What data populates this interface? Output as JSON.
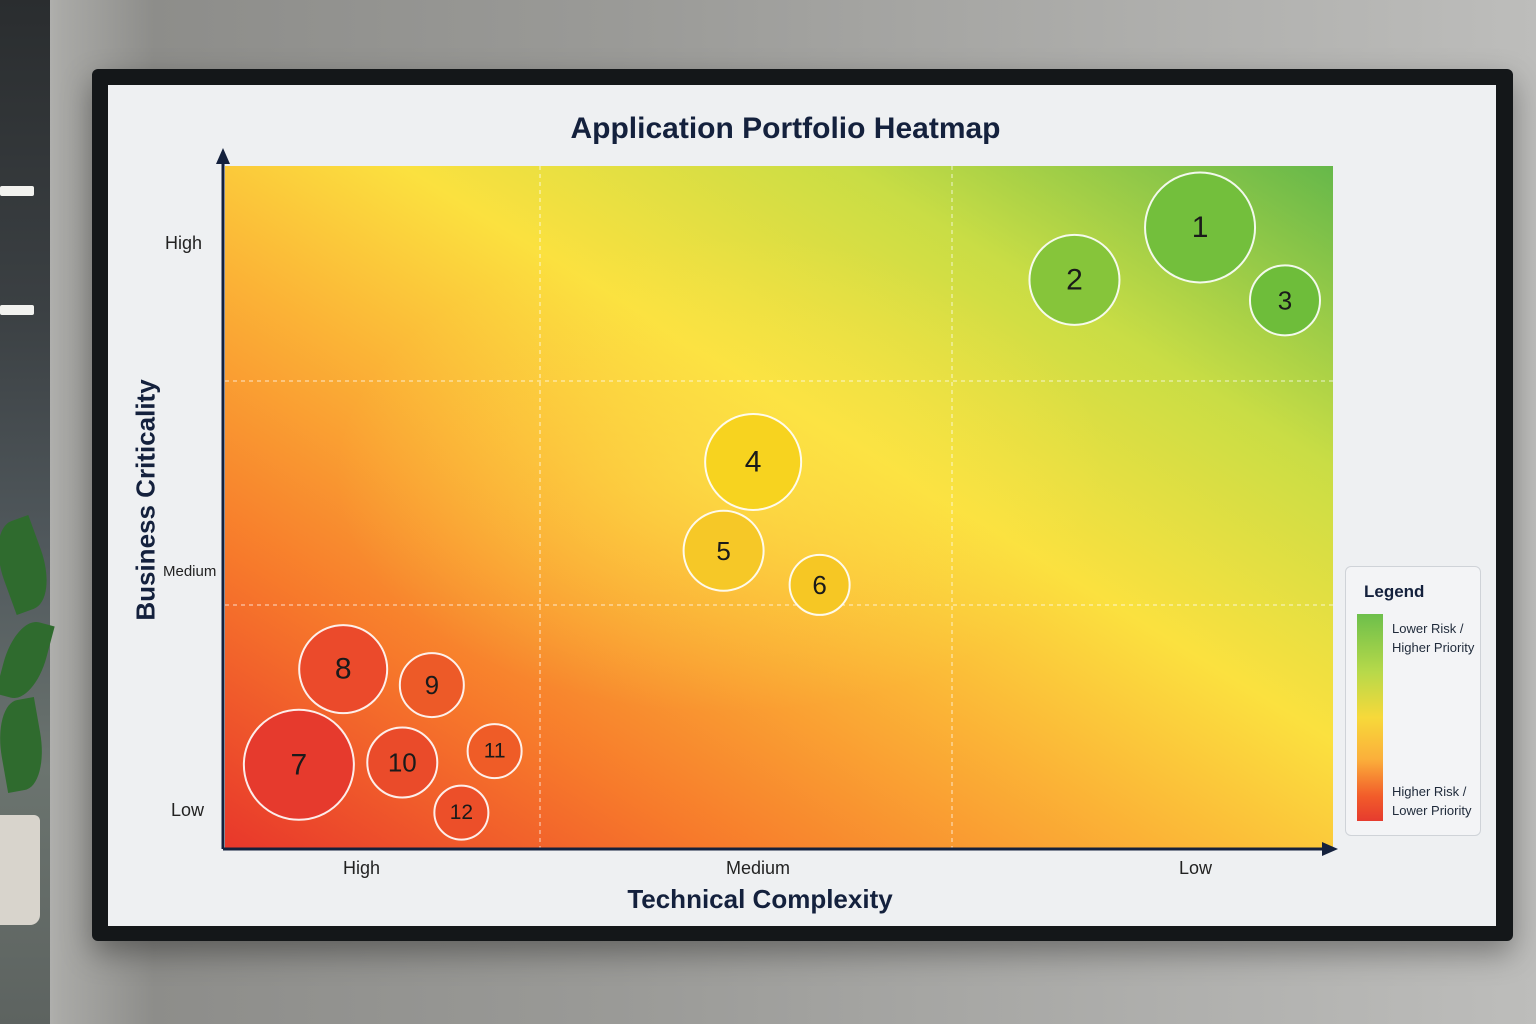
{
  "chart_data": {
    "type": "scatter",
    "title": "Application Portfolio Heatmap",
    "xlabel": "Technical Complexity",
    "ylabel": "Business Criticality",
    "x_ticks": [
      "High",
      "Medium",
      "Low"
    ],
    "y_ticks": [
      "High",
      "Medium",
      "Low"
    ],
    "xlim": [
      0,
      3
    ],
    "ylim": [
      0,
      3
    ],
    "grid": true,
    "legend": {
      "title": "Legend",
      "position": "right",
      "top_label": "Lower Risk / Higher Priority",
      "bottom_label": "Higher Risk / Lower Priority"
    },
    "points": [
      {
        "label": "1",
        "x": 2.64,
        "y": 2.73,
        "size": 55,
        "color": "#73bf3c"
      },
      {
        "label": "2",
        "x": 2.3,
        "y": 2.5,
        "size": 45,
        "color": "#86c53a"
      },
      {
        "label": "3",
        "x": 2.87,
        "y": 2.41,
        "size": 35,
        "color": "#6ebd3a"
      },
      {
        "label": "4",
        "x": 1.43,
        "y": 1.7,
        "size": 48,
        "color": "#f7d31f"
      },
      {
        "label": "5",
        "x": 1.35,
        "y": 1.31,
        "size": 40,
        "color": "#f6c827"
      },
      {
        "label": "6",
        "x": 1.61,
        "y": 1.16,
        "size": 30,
        "color": "#f6c724"
      },
      {
        "label": "7",
        "x": 0.2,
        "y": 0.37,
        "size": 55,
        "color": "#e63a2d"
      },
      {
        "label": "8",
        "x": 0.32,
        "y": 0.79,
        "size": 44,
        "color": "#eb4a2b"
      },
      {
        "label": "9",
        "x": 0.56,
        "y": 0.72,
        "size": 32,
        "color": "#ed5a28"
      },
      {
        "label": "10",
        "x": 0.48,
        "y": 0.38,
        "size": 35,
        "color": "#ea4b2a"
      },
      {
        "label": "11",
        "x": 0.73,
        "y": 0.43,
        "size": 27,
        "color": "#ef5c27"
      },
      {
        "label": "12",
        "x": 0.64,
        "y": 0.16,
        "size": 27,
        "color": "#ec4f29"
      }
    ]
  }
}
